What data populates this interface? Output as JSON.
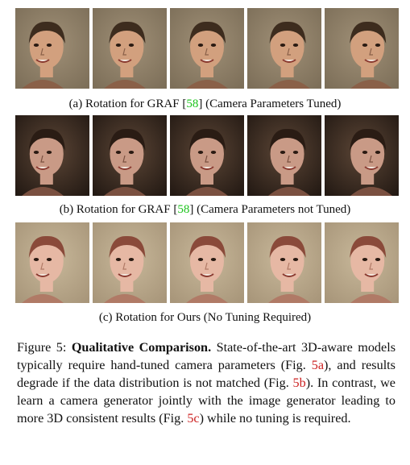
{
  "rows": [
    {
      "caption": {
        "prefix": "(a) Rotation for GRAF [",
        "cite": "58",
        "suffix": "] (Camera Parameters Tuned)"
      },
      "style": {
        "bg": "#7d6f59",
        "bg2": "#a09077",
        "skin": "#d2a07e",
        "hair": "#3d2c1e",
        "shadow": "#8a6048"
      }
    },
    {
      "caption": {
        "prefix": "(b) Rotation for GRAF [",
        "cite": "58",
        "suffix": "] (Camera Parameters not Tuned)"
      },
      "style": {
        "bg": "#241a14",
        "bg2": "#5c4636",
        "skin": "#c99a86",
        "hair": "#2a1c14",
        "shadow": "#7a5040"
      }
    },
    {
      "caption": {
        "prefix": "(c) Rotation for Ours (No Tuning Required)",
        "cite": "",
        "suffix": ""
      },
      "style": {
        "bg": "#a8967a",
        "bg2": "#c8b89a",
        "skin": "#e6b8a4",
        "hair": "#8a4a3a",
        "shadow": "#b07a66"
      }
    }
  ],
  "figure_caption": {
    "label": "Figure 5: ",
    "bold": "Qualitative Comparison.",
    "text1": " State-of-the-art 3D-aware models typically require hand-tuned camera parameters (Fig. ",
    "ref1": "5a",
    "text2": "), and results degrade if the data distribution is not matched (Fig. ",
    "ref2": "5b",
    "text3": "). In contrast, we learn a camera generator jointly with the image generator leading to more 3D consistent results (Fig. ",
    "ref3": "5c",
    "text4": ") while no tuning is required."
  }
}
